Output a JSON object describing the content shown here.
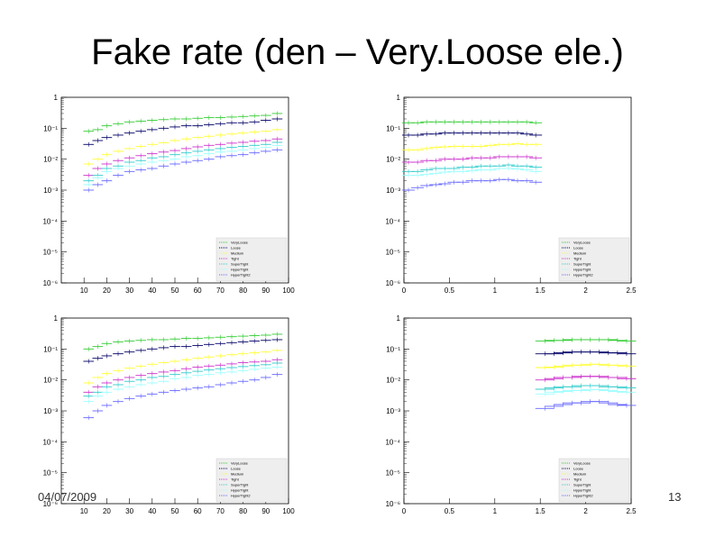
{
  "slide": {
    "title": "Fake rate (den – Very.Loose ele.)",
    "date": "04/07/2009",
    "page_number": "13"
  },
  "colors": [
    "#33cc33",
    "#000066",
    "#ffff33",
    "#cc33cc",
    "#33cccc",
    "#99ffff",
    "#6666ff",
    "#333399"
  ],
  "chart_data": [
    {
      "type": "scatter",
      "title": "",
      "xlabel": "",
      "ylabel": "",
      "log_y": true,
      "xlim": [
        0,
        100
      ],
      "ylim": [
        1e-06,
        1
      ],
      "x_ticks": [
        "10",
        "20",
        "30",
        "40",
        "50",
        "60",
        "70",
        "80",
        "90",
        "100"
      ],
      "x_tick_values": [
        10,
        20,
        30,
        40,
        50,
        60,
        70,
        80,
        90,
        100
      ],
      "y_ticks": [
        "1",
        "10⁻¹",
        "10⁻²",
        "10⁻³",
        "10⁻⁴",
        "10⁻⁵",
        "10⁻⁶"
      ],
      "y_tick_values": [
        0,
        -1,
        -2,
        -3,
        -4,
        -5,
        -6
      ],
      "legend": [
        "VeryLoose",
        "Loose",
        "Medium",
        "Tight",
        "SuperTight",
        "HyperTight",
        "HyperTight2"
      ],
      "legend_position": "bottom-right",
      "x": [
        12,
        16,
        20,
        25,
        30,
        35,
        40,
        45,
        50,
        55,
        60,
        65,
        70,
        75,
        80,
        85,
        90,
        95
      ],
      "series": [
        {
          "values": [
            0.08,
            0.09,
            0.12,
            0.14,
            0.16,
            0.17,
            0.18,
            0.19,
            0.2,
            0.2,
            0.21,
            0.22,
            0.22,
            0.23,
            0.24,
            0.25,
            0.26,
            0.3
          ]
        },
        {
          "values": [
            0.03,
            0.04,
            0.05,
            0.06,
            0.07,
            0.08,
            0.09,
            0.1,
            0.11,
            0.12,
            0.12,
            0.13,
            0.14,
            0.15,
            0.15,
            0.16,
            0.18,
            0.2
          ]
        },
        {
          "values": [
            0.007,
            0.01,
            0.014,
            0.018,
            0.022,
            0.026,
            0.03,
            0.034,
            0.04,
            0.045,
            0.05,
            0.055,
            0.06,
            0.065,
            0.07,
            0.075,
            0.08,
            0.09
          ]
        },
        {
          "values": [
            0.003,
            0.005,
            0.007,
            0.009,
            0.011,
            0.013,
            0.015,
            0.017,
            0.019,
            0.022,
            0.025,
            0.028,
            0.03,
            0.033,
            0.035,
            0.038,
            0.04,
            0.045
          ]
        },
        {
          "values": [
            0.002,
            0.003,
            0.005,
            0.006,
            0.008,
            0.009,
            0.011,
            0.012,
            0.014,
            0.016,
            0.018,
            0.02,
            0.022,
            0.024,
            0.026,
            0.028,
            0.03,
            0.035
          ]
        },
        {
          "values": [
            0.0015,
            0.0025,
            0.004,
            0.005,
            0.006,
            0.007,
            0.008,
            0.009,
            0.01,
            0.012,
            0.013,
            0.015,
            0.017,
            0.018,
            0.02,
            0.022,
            0.024,
            0.028
          ]
        },
        {
          "values": [
            0.001,
            0.0015,
            0.002,
            0.003,
            0.004,
            0.0045,
            0.005,
            0.006,
            0.007,
            0.008,
            0.009,
            0.01,
            0.012,
            0.013,
            0.014,
            0.016,
            0.018,
            0.02
          ]
        }
      ]
    },
    {
      "type": "scatter",
      "title": "",
      "xlabel": "",
      "ylabel": "",
      "log_y": true,
      "xlim": [
        0,
        2.5
      ],
      "ylim": [
        1e-06,
        1
      ],
      "x_ticks": [
        "0",
        "0.5",
        "1",
        "1.5",
        "2",
        "2.5"
      ],
      "x_tick_values": [
        0,
        0.5,
        1,
        1.5,
        2,
        2.5
      ],
      "y_ticks": [
        "1",
        "10⁻¹",
        "10⁻²",
        "10⁻³",
        "10⁻⁴",
        "10⁻⁵",
        "10⁻⁶"
      ],
      "y_tick_values": [
        0,
        -1,
        -2,
        -3,
        -4,
        -5,
        -6
      ],
      "legend": [
        "VeryLoose",
        "Loose",
        "Medium",
        "Tight",
        "SuperTight",
        "HyperTight",
        "HyperTight2"
      ],
      "legend_position": "bottom-right",
      "x": [
        0.05,
        0.15,
        0.25,
        0.35,
        0.45,
        0.55,
        0.65,
        0.75,
        0.85,
        0.95,
        1.05,
        1.15,
        1.25,
        1.35,
        1.45
      ],
      "series": [
        {
          "values": [
            0.15,
            0.15,
            0.16,
            0.16,
            0.16,
            0.16,
            0.16,
            0.16,
            0.16,
            0.16,
            0.16,
            0.16,
            0.16,
            0.16,
            0.15
          ]
        },
        {
          "values": [
            0.06,
            0.06,
            0.065,
            0.065,
            0.07,
            0.07,
            0.07,
            0.07,
            0.07,
            0.07,
            0.07,
            0.07,
            0.07,
            0.065,
            0.06
          ]
        },
        {
          "values": [
            0.02,
            0.02,
            0.022,
            0.024,
            0.025,
            0.026,
            0.026,
            0.026,
            0.026,
            0.028,
            0.03,
            0.03,
            0.032,
            0.03,
            0.03
          ]
        },
        {
          "values": [
            0.008,
            0.008,
            0.009,
            0.009,
            0.01,
            0.01,
            0.01,
            0.011,
            0.011,
            0.011,
            0.012,
            0.012,
            0.012,
            0.012,
            0.011
          ]
        },
        {
          "values": [
            0.004,
            0.004,
            0.0045,
            0.005,
            0.005,
            0.005,
            0.0055,
            0.0055,
            0.006,
            0.006,
            0.006,
            0.0065,
            0.006,
            0.006,
            0.0055
          ]
        },
        {
          "values": [
            0.003,
            0.003,
            0.0032,
            0.0035,
            0.0038,
            0.004,
            0.004,
            0.0042,
            0.0045,
            0.0045,
            0.005,
            0.005,
            0.0048,
            0.0045,
            0.004
          ]
        },
        {
          "values": [
            0.001,
            0.0012,
            0.0014,
            0.0015,
            0.0016,
            0.0018,
            0.0018,
            0.002,
            0.002,
            0.002,
            0.0022,
            0.0022,
            0.002,
            0.002,
            0.0018
          ]
        }
      ]
    },
    {
      "type": "scatter",
      "title": "",
      "xlabel": "",
      "ylabel": "",
      "log_y": true,
      "xlim": [
        0,
        100
      ],
      "ylim": [
        1e-06,
        1
      ],
      "x_ticks": [
        "10",
        "20",
        "30",
        "40",
        "50",
        "60",
        "70",
        "80",
        "90",
        "100"
      ],
      "x_tick_values": [
        10,
        20,
        30,
        40,
        50,
        60,
        70,
        80,
        90,
        100
      ],
      "y_ticks": [
        "1",
        "10⁻¹",
        "10⁻²",
        "10⁻³",
        "10⁻⁴",
        "10⁻⁵",
        "10⁻⁶"
      ],
      "y_tick_values": [
        0,
        -1,
        -2,
        -3,
        -4,
        -5,
        -6
      ],
      "legend": [
        "VeryLoose",
        "Loose",
        "Medium",
        "Tight",
        "SuperTight",
        "HyperTight",
        "HyperTight2"
      ],
      "legend_position": "bottom-right",
      "x": [
        12,
        16,
        20,
        25,
        30,
        35,
        40,
        45,
        50,
        55,
        60,
        65,
        70,
        75,
        80,
        85,
        90,
        95
      ],
      "series": [
        {
          "values": [
            0.1,
            0.12,
            0.15,
            0.17,
            0.18,
            0.19,
            0.2,
            0.2,
            0.21,
            0.22,
            0.22,
            0.23,
            0.24,
            0.25,
            0.26,
            0.27,
            0.28,
            0.3
          ]
        },
        {
          "values": [
            0.04,
            0.05,
            0.06,
            0.07,
            0.08,
            0.09,
            0.1,
            0.11,
            0.12,
            0.12,
            0.13,
            0.14,
            0.15,
            0.16,
            0.17,
            0.18,
            0.19,
            0.2
          ]
        },
        {
          "values": [
            0.008,
            0.012,
            0.016,
            0.02,
            0.024,
            0.028,
            0.032,
            0.036,
            0.04,
            0.045,
            0.05,
            0.055,
            0.06,
            0.065,
            0.07,
            0.075,
            0.08,
            0.09
          ]
        },
        {
          "values": [
            0.004,
            0.006,
            0.008,
            0.01,
            0.012,
            0.014,
            0.016,
            0.018,
            0.02,
            0.023,
            0.026,
            0.028,
            0.03,
            0.033,
            0.036,
            0.038,
            0.04,
            0.045
          ]
        },
        {
          "values": [
            0.003,
            0.004,
            0.006,
            0.007,
            0.009,
            0.01,
            0.012,
            0.013,
            0.015,
            0.017,
            0.019,
            0.021,
            0.023,
            0.025,
            0.027,
            0.029,
            0.031,
            0.035
          ]
        },
        {
          "values": [
            0.002,
            0.003,
            0.004,
            0.005,
            0.006,
            0.007,
            0.008,
            0.009,
            0.011,
            0.012,
            0.014,
            0.015,
            0.017,
            0.018,
            0.02,
            0.022,
            0.024,
            0.026
          ]
        },
        {
          "values": [
            0.0006,
            0.001,
            0.0015,
            0.002,
            0.0025,
            0.003,
            0.0035,
            0.004,
            0.0045,
            0.005,
            0.0055,
            0.006,
            0.007,
            0.008,
            0.009,
            0.01,
            0.012,
            0.015
          ]
        }
      ]
    },
    {
      "type": "scatter",
      "title": "",
      "xlabel": "",
      "ylabel": "",
      "log_y": true,
      "xlim": [
        0,
        2.5
      ],
      "ylim": [
        1e-06,
        1
      ],
      "x_ticks": [
        "0",
        "0.5",
        "1",
        "1.5",
        "2",
        "2.5"
      ],
      "x_tick_values": [
        0,
        0.5,
        1,
        1.5,
        2,
        2.5
      ],
      "y_ticks": [
        "1",
        "10⁻¹",
        "10⁻²",
        "10⁻³",
        "10⁻⁴",
        "10⁻⁵",
        "10⁻⁶"
      ],
      "y_tick_values": [
        0,
        -1,
        -2,
        -3,
        -4,
        -5,
        -6
      ],
      "legend": [
        "VeryLoose",
        "Loose",
        "Medium",
        "Tight",
        "SuperTight",
        "HyperTight",
        "HyperTight2"
      ],
      "legend_position": "bottom-right",
      "x": [
        1.55,
        1.65,
        1.75,
        1.85,
        1.95,
        2.05,
        2.15,
        2.25,
        2.35,
        2.45
      ],
      "series": [
        {
          "values": [
            0.18,
            0.19,
            0.19,
            0.2,
            0.2,
            0.2,
            0.2,
            0.2,
            0.19,
            0.18
          ]
        },
        {
          "values": [
            0.07,
            0.07,
            0.075,
            0.08,
            0.08,
            0.08,
            0.08,
            0.075,
            0.075,
            0.07
          ]
        },
        {
          "values": [
            0.025,
            0.026,
            0.028,
            0.03,
            0.03,
            0.032,
            0.032,
            0.03,
            0.03,
            0.028
          ]
        },
        {
          "values": [
            0.01,
            0.011,
            0.012,
            0.012,
            0.013,
            0.013,
            0.013,
            0.012,
            0.012,
            0.011
          ]
        },
        {
          "values": [
            0.005,
            0.0055,
            0.006,
            0.006,
            0.0065,
            0.0065,
            0.0065,
            0.006,
            0.006,
            0.0055
          ]
        },
        {
          "values": [
            0.0035,
            0.004,
            0.0042,
            0.0045,
            0.0045,
            0.0048,
            0.0048,
            0.0045,
            0.0042,
            0.004
          ]
        },
        {
          "values": [
            0.0012,
            0.0014,
            0.0016,
            0.0018,
            0.0018,
            0.002,
            0.002,
            0.0018,
            0.0016,
            0.0015
          ]
        }
      ]
    }
  ]
}
